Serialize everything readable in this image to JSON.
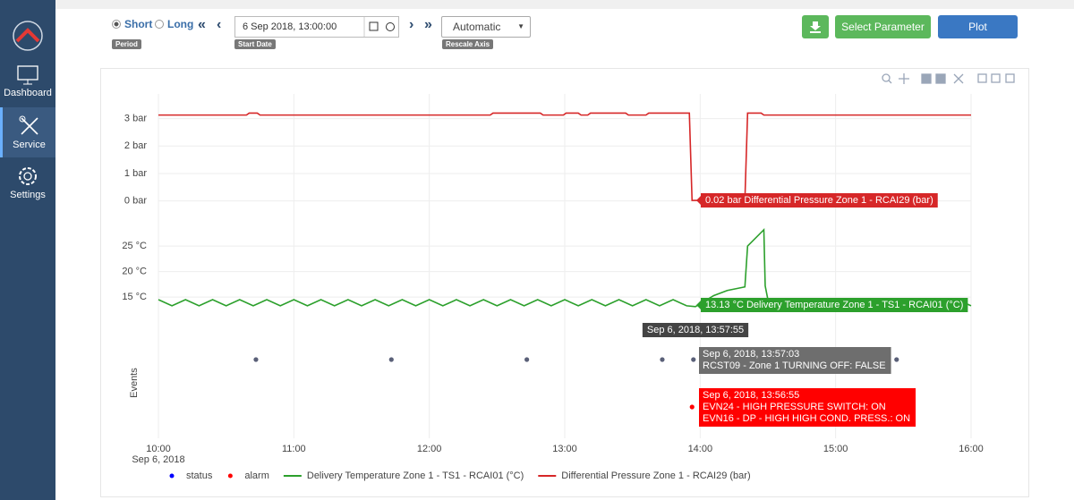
{
  "sidebar": {
    "items": [
      {
        "label": "Dashboard"
      },
      {
        "label": "Service"
      },
      {
        "label": "Settings"
      }
    ]
  },
  "toolbar": {
    "period_options": [
      "Short",
      "Long"
    ],
    "period_label": "Period",
    "start_date": "6 Sep 2018, 13:00:00",
    "start_date_label": "Start Date",
    "rescale": "Automatic",
    "rescale_label": "Rescale Axis",
    "buttons": [
      "Select Parameter",
      "Plot"
    ]
  },
  "chart_data": [
    {
      "type": "line",
      "ylim": [
        -0.5,
        3.9
      ],
      "yticks": [
        {
          "value": 0,
          "label": "0 bar"
        },
        {
          "value": 1,
          "label": "1 bar"
        },
        {
          "value": 2,
          "label": "2 bar"
        },
        {
          "value": 3,
          "label": "3 bar"
        }
      ],
      "series": [
        {
          "name": "Differential Pressure Zone 1 - RCAI29 (bar)",
          "color": "#d62728",
          "x": [
            10,
            10.65,
            10.67,
            10.73,
            10.75,
            12.45,
            12.47,
            12.82,
            12.84,
            12.99,
            13.01,
            13.1,
            13.12,
            13.17,
            13.19,
            13.45,
            13.47,
            13.6,
            13.62,
            13.92,
            13.94,
            13.965,
            14.33,
            14.35,
            14.45,
            14.47,
            16
          ],
          "values": [
            3.13,
            3.13,
            3.2,
            3.2,
            3.13,
            3.13,
            3.2,
            3.2,
            3.13,
            3.13,
            3.2,
            3.2,
            3.13,
            3.13,
            3.2,
            3.2,
            3.13,
            3.13,
            3.2,
            3.2,
            0.02,
            0.02,
            0.02,
            3.2,
            3.2,
            3.13,
            3.13
          ]
        }
      ],
      "annotation": "0.02 bar Differential Pressure Zone 1 - RCAI29 (bar)"
    },
    {
      "type": "line",
      "ylim": [
        11,
        29.4
      ],
      "yticks": [
        {
          "value": 15,
          "label": "15 °C"
        },
        {
          "value": 20,
          "label": "20 °C"
        },
        {
          "value": 25,
          "label": "25 °C"
        }
      ],
      "series": [
        {
          "name": "Delivery Temperature Zone 1 - TS1 - RCAI01 (°C)",
          "color": "#2ca02c",
          "x": [
            10,
            10.1,
            10.2,
            10.3,
            10.4,
            10.5,
            10.6,
            10.7,
            10.8,
            10.9,
            11,
            11.1,
            11.2,
            11.3,
            11.4,
            11.5,
            11.6,
            11.7,
            11.8,
            11.9,
            12,
            12.1,
            12.2,
            12.3,
            12.4,
            12.5,
            12.6,
            12.7,
            12.8,
            12.9,
            13,
            13.1,
            13.2,
            13.3,
            13.4,
            13.5,
            13.6,
            13.7,
            13.8,
            13.9,
            13.965,
            14.1,
            14.2,
            14.33,
            14.35,
            14.47,
            14.48,
            14.5,
            14.6,
            14.7,
            14.8,
            14.9,
            15,
            15.1,
            15.2,
            15.3,
            15.4,
            15.5,
            15.6,
            15.7,
            15.8,
            15.9,
            16
          ],
          "values": [
            14.5,
            13.3,
            14.5,
            13.3,
            14.5,
            13.3,
            14.5,
            13.3,
            14.5,
            13.3,
            14.5,
            13.3,
            14.5,
            13.3,
            14.5,
            13.3,
            14.5,
            13.3,
            14.5,
            13.3,
            14.5,
            13.3,
            14.5,
            13.3,
            14.5,
            13.3,
            14.5,
            13.3,
            14.5,
            13.3,
            14.5,
            13.3,
            14.5,
            13.3,
            14.5,
            13.3,
            14.5,
            13.3,
            14.5,
            13.3,
            13.13,
            15.3,
            16.3,
            17,
            25,
            28.2,
            17.2,
            14.5,
            13.3,
            14.5,
            13.3,
            14.5,
            13.3,
            14.5,
            13.3,
            14.5,
            13.3,
            14.5,
            13.3,
            14.5,
            13.3,
            14.5,
            13.3
          ]
        }
      ],
      "annotation": "13.13 °C Delivery Temperature Zone 1 - TS1 - RCAI01 (°C)",
      "crosshair_label": "Sep 6, 2018, 13:57:55"
    },
    {
      "type": "scatter",
      "ylabel": "Events",
      "xlim": [
        10,
        16
      ],
      "xticks": [
        {
          "value": 10,
          "label": "10:00"
        },
        {
          "value": 11,
          "label": "11:00"
        },
        {
          "value": 12,
          "label": "12:00"
        },
        {
          "value": 13,
          "label": "13:00"
        },
        {
          "value": 14,
          "label": "14:00"
        },
        {
          "value": 15,
          "label": "15:00"
        },
        {
          "value": 16,
          "label": "16:00"
        }
      ],
      "x_sublabel": "Sep 6, 2018",
      "series": [
        {
          "name": "status",
          "color": "#0000ff",
          "marker_color": "#5a6078",
          "x": [
            10.72,
            11.72,
            12.72,
            13.72,
            13.95,
            15.45
          ]
        },
        {
          "name": "alarm",
          "color": "#ff0000",
          "marker_color": "#ff0000",
          "x": [
            13.94
          ]
        }
      ],
      "tooltips": [
        {
          "lines": [
            "Sep 6, 2018, 13:57:03",
            "RCST09 - Zone 1 TURNING OFF: FALSE"
          ],
          "color": "#6e6e6e"
        },
        {
          "lines": [
            "Sep 6, 2018, 13:56:55",
            "EVN24 - HIGH PRESSURE SWITCH: ON",
            "EVN16 - DP - HIGH HIGH COND. PRESS.: ON"
          ],
          "color": "#ff0000"
        }
      ]
    }
  ]
}
